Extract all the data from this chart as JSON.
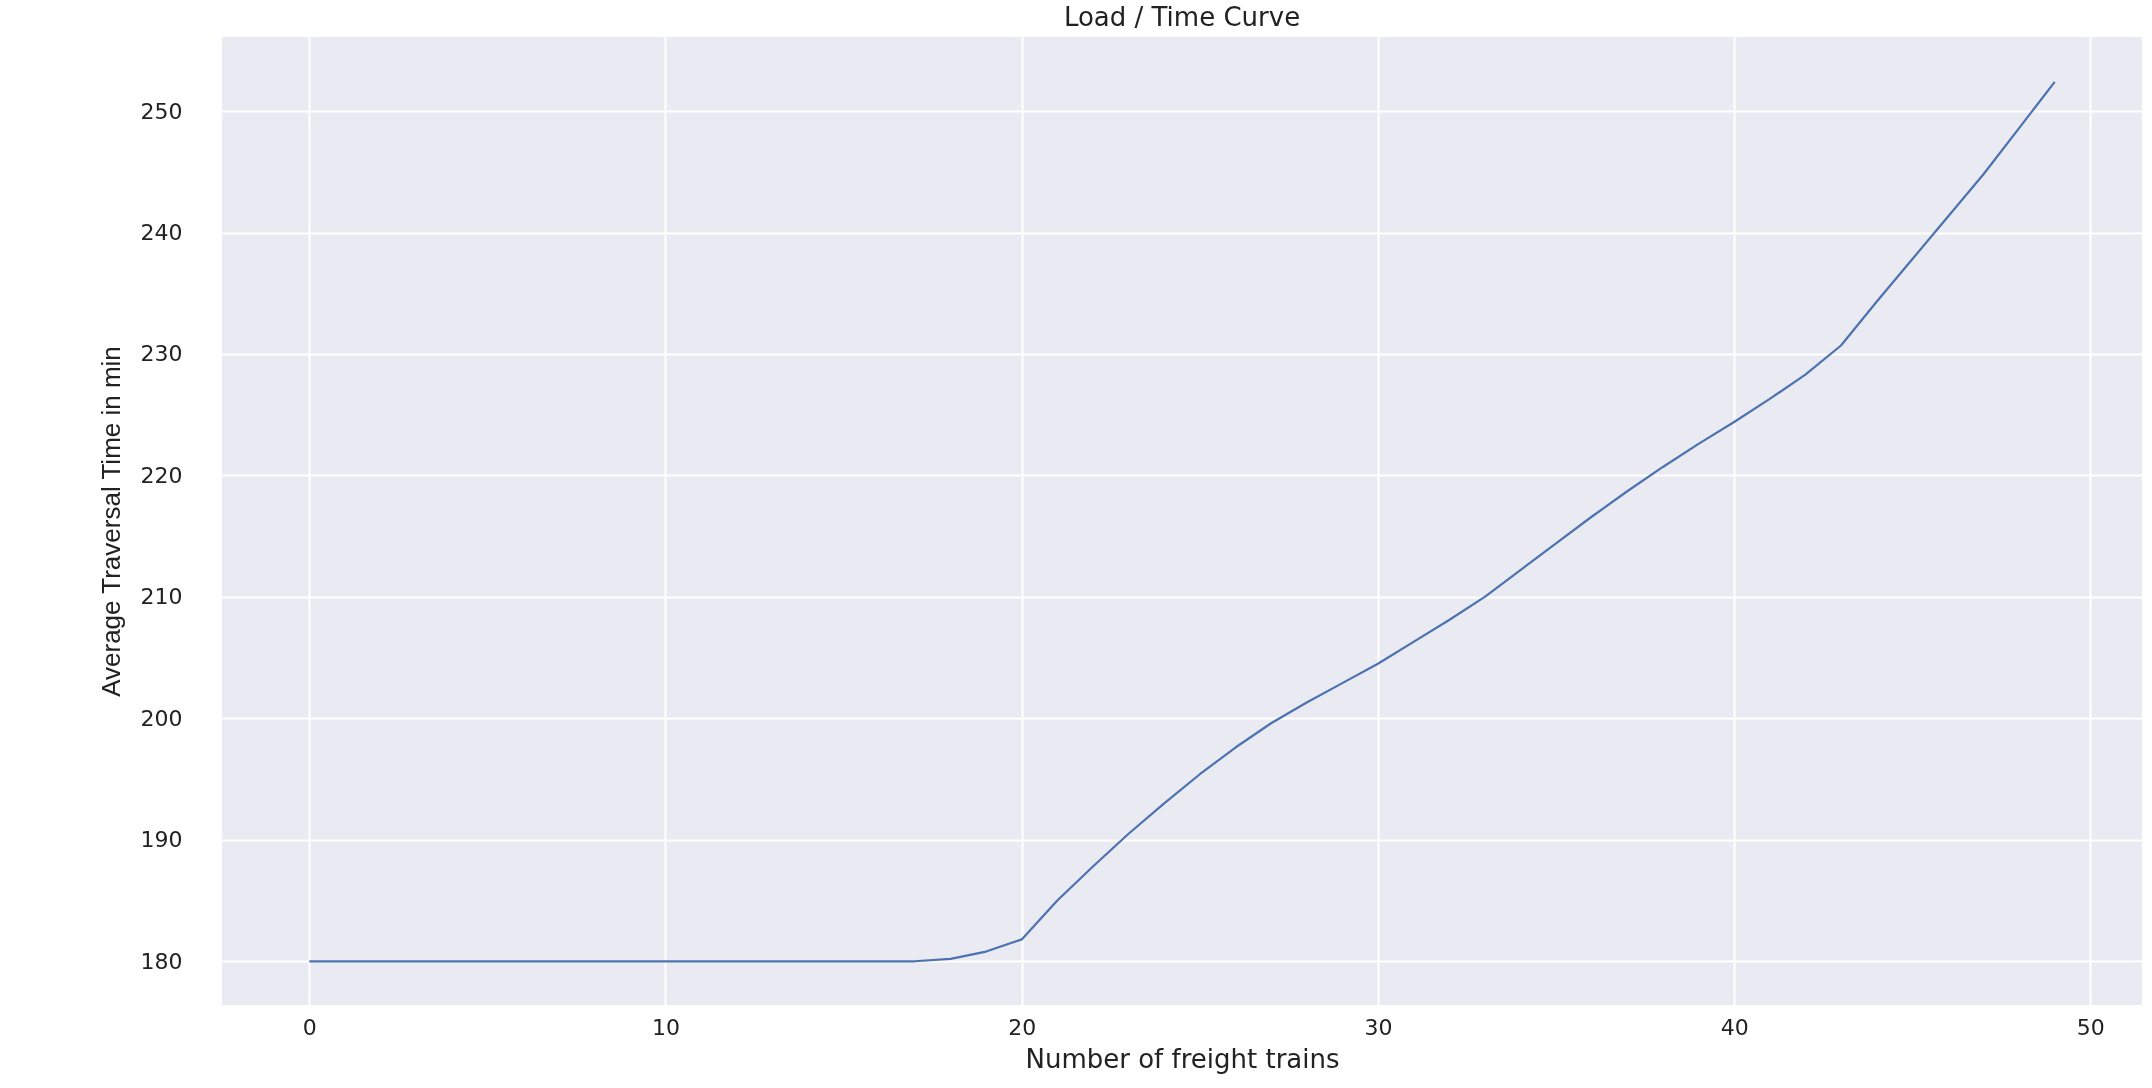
{
  "chart_data": {
    "type": "line",
    "title": "Load / Time Curve",
    "xlabel": "Number of freight trains",
    "ylabel": "Average Traversal Time in min",
    "x": [
      0,
      1,
      2,
      3,
      4,
      5,
      6,
      7,
      8,
      9,
      10,
      11,
      12,
      13,
      14,
      15,
      16,
      17,
      18,
      19,
      20,
      21,
      22,
      23,
      24,
      25,
      26,
      27,
      28,
      29,
      30,
      31,
      32,
      33,
      34,
      35,
      36,
      37,
      38,
      39,
      40,
      41,
      42,
      43,
      44,
      45,
      46,
      47,
      48,
      49
    ],
    "series": [
      {
        "color": "#4c72b0",
        "values": [
          180,
          180,
          180,
          180,
          180,
          180,
          180,
          180,
          180,
          180,
          180,
          180,
          180,
          180,
          180,
          180,
          180,
          180,
          180.2,
          180.8,
          181.8,
          185,
          187.8,
          190.5,
          193,
          195.4,
          197.6,
          199.6,
          201.3,
          202.9,
          204.5,
          206.3,
          208.1,
          210,
          212.2,
          214.4,
          216.6,
          218.7,
          220.7,
          222.6,
          224.4,
          226.3,
          228.3,
          230.7,
          234.3,
          237.8,
          241.3,
          244.8,
          248.6,
          252.4
        ]
      }
    ],
    "xlim": [
      -2.45,
      51.45
    ],
    "ylim": [
      176.4,
      256.1
    ],
    "xticks": [
      0,
      10,
      20,
      30,
      40,
      50
    ],
    "yticks": [
      180,
      190,
      200,
      210,
      220,
      230,
      240,
      250
    ],
    "grid": true
  }
}
